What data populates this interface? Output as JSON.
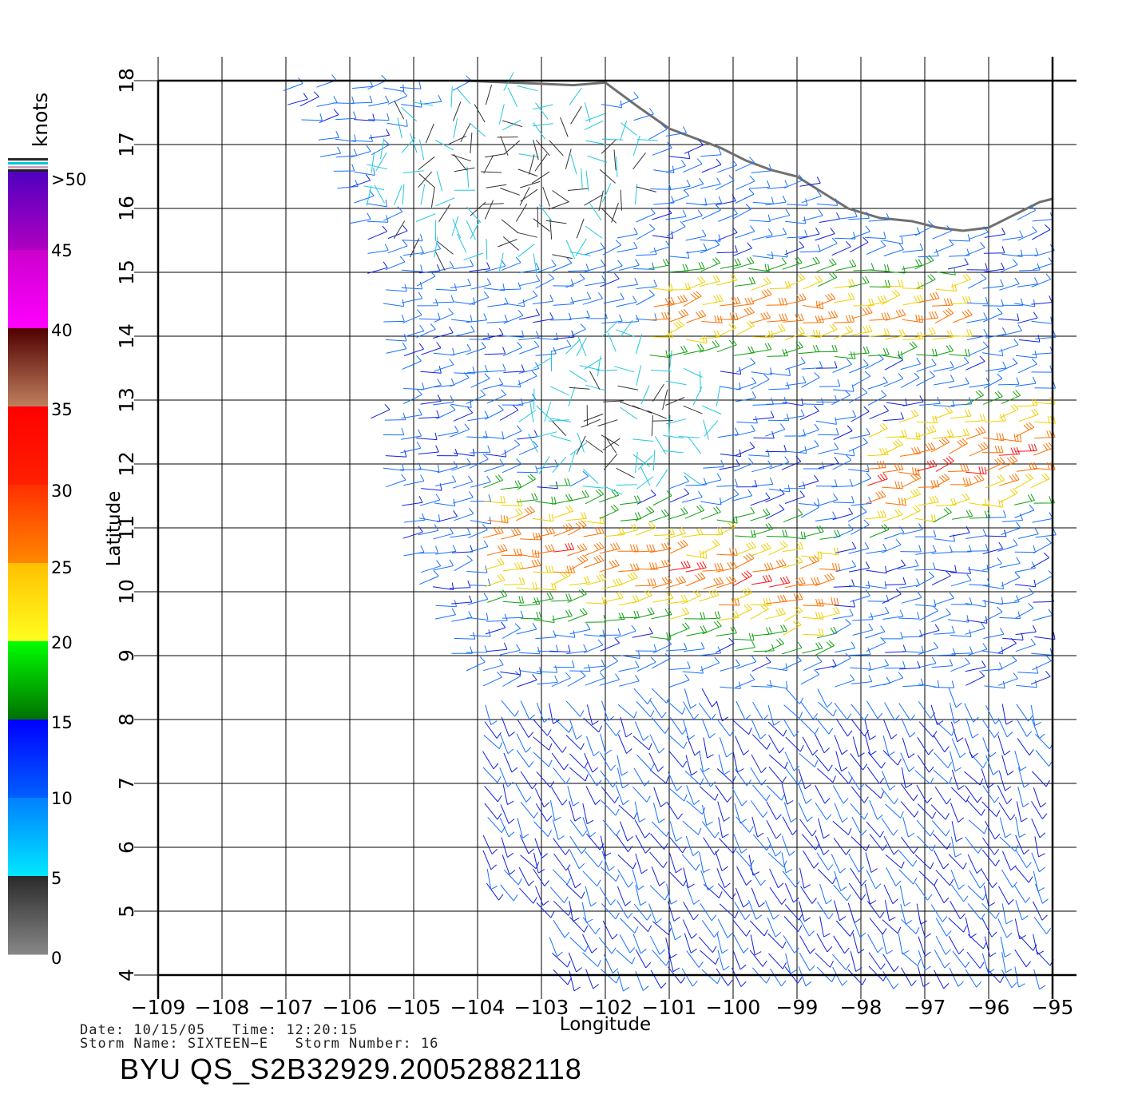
{
  "colorbar": {
    "title": "knots",
    "labels": [
      ">50",
      "45",
      "40",
      "35",
      "30",
      "25",
      "20",
      "15",
      "10",
      "5",
      "0"
    ],
    "colors": {
      "0-5": [
        "#888888",
        "#2a2a2a"
      ],
      "5-10": [
        "#00e8ff",
        "#0080ff"
      ],
      "10-15": [
        "#0060ff",
        "#0000ff"
      ],
      "15-20": [
        "#007000",
        "#00ff00"
      ],
      "20-25": [
        "#ffff20",
        "#ffc000"
      ],
      "25-30": [
        "#ff8800",
        "#ff3000"
      ],
      "30-35": [
        "#ff2000",
        "#ff0000"
      ],
      "35-40": [
        "#c08060",
        "#500000"
      ],
      "40-45": [
        "#ff00ff",
        "#cc00cc"
      ],
      "45-50": [
        "#b000c0",
        "#5000c0"
      ]
    }
  },
  "map": {
    "lon_ticks": [
      "−109",
      "−108",
      "−107",
      "−106",
      "−105",
      "−104",
      "−103",
      "−102",
      "−101",
      "−100",
      "−99",
      "−98",
      "−97",
      "−96",
      "−95"
    ],
    "lat_ticks": [
      "4",
      "5",
      "6",
      "7",
      "8",
      "9",
      "10",
      "11",
      "12",
      "13",
      "14",
      "15",
      "16",
      "17",
      "18"
    ],
    "lon_range": [
      -109,
      -95
    ],
    "lat_range": [
      4,
      18
    ],
    "xlabel": "Longitude",
    "ylabel": "Latitude",
    "grid": true,
    "coastline_color": "#707070"
  },
  "info": {
    "line1": "Date: 10/15/05   Time: 12:20:15",
    "line2": "Storm Name: SIXTEEN−E   Storm Number: 16",
    "title": "BYU QS_S2B32929.20052882118"
  }
}
